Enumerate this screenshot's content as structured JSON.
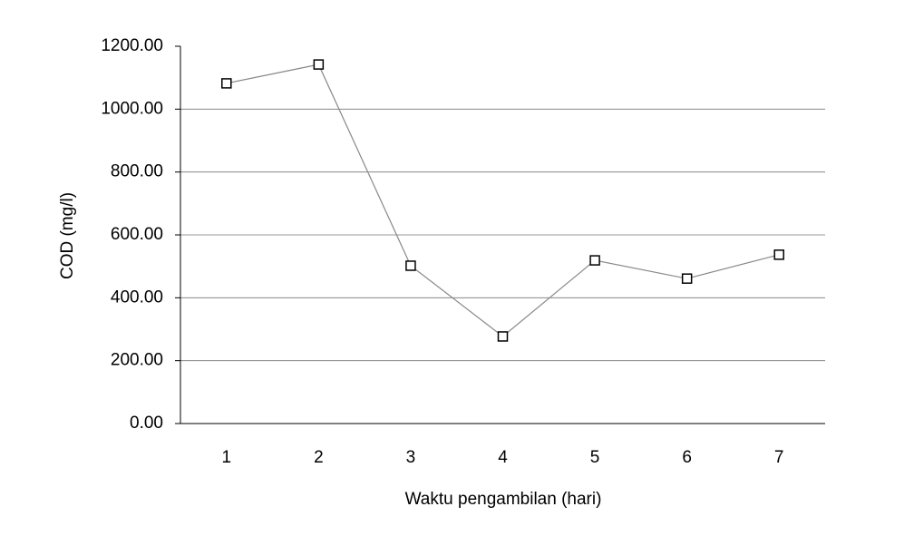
{
  "chart_data": {
    "type": "line",
    "x_label": "Waktu pengambilan (hari)",
    "y_label": "COD (mg/l)",
    "categories": [
      "1",
      "2",
      "3",
      "4",
      "5",
      "6",
      "7"
    ],
    "series": [
      {
        "color": "#888888",
        "values": [
          1082,
          1142,
          502,
          277,
          519,
          461,
          537
        ]
      }
    ],
    "ylim": [
      0,
      1200
    ],
    "yticks": [
      {
        "value": 0,
        "label": "0.00"
      },
      {
        "value": 200,
        "label": "200.00"
      },
      {
        "value": 400,
        "label": "400.00"
      },
      {
        "value": 600,
        "label": "600.00"
      },
      {
        "value": 800,
        "label": "800.00"
      },
      {
        "value": 1000,
        "label": "1000.00"
      },
      {
        "value": 1200,
        "label": "1200.00"
      }
    ],
    "grid": true
  }
}
